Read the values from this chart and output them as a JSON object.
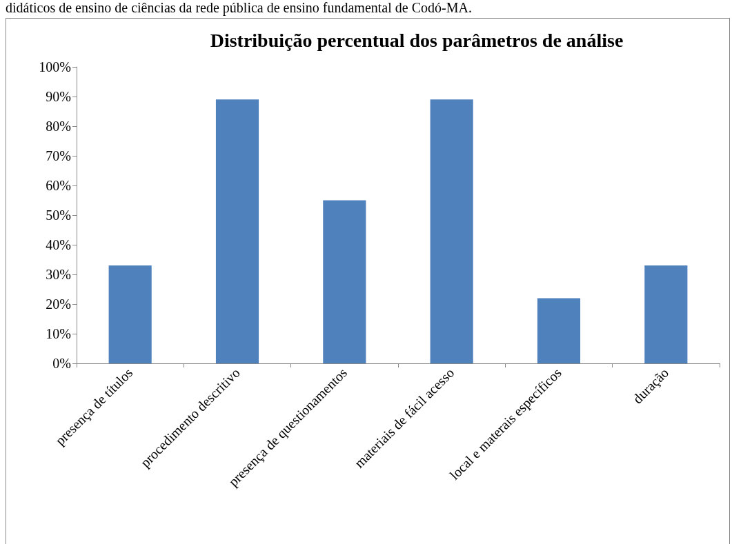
{
  "chart_data": {
    "type": "bar",
    "title": "Distribuição percentual dos parâmetros de análise",
    "annotations": [
      "didáticos de ensino de ciências da rede pública de ensino fundamental de Codó-MA."
    ],
    "categories": [
      "presença de títulos",
      "procedimento descritivo",
      "presença de questionamentos",
      "materiais de fácil acesso",
      "local e materais específicos",
      "duração"
    ],
    "values": [
      33,
      89,
      55,
      89,
      22,
      33
    ],
    "color": "#4f81bd",
    "ylim": [
      0,
      100
    ],
    "yticks": [
      {
        "value": 0,
        "label": "0%"
      },
      {
        "value": 10,
        "label": "10%"
      },
      {
        "value": 20,
        "label": "20%"
      },
      {
        "value": 30,
        "label": "30%"
      },
      {
        "value": 40,
        "label": "40%"
      },
      {
        "value": 50,
        "label": "50%"
      },
      {
        "value": 60,
        "label": "60%"
      },
      {
        "value": 70,
        "label": "70%"
      },
      {
        "value": 80,
        "label": "80%"
      },
      {
        "value": 90,
        "label": "90%"
      },
      {
        "value": 100,
        "label": "100%"
      }
    ],
    "grid": false
  }
}
